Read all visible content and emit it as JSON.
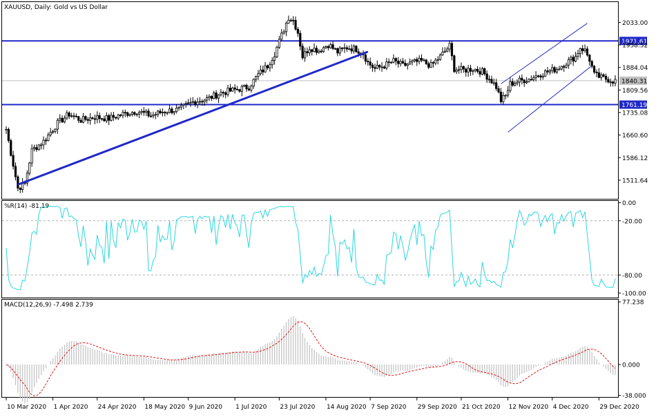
{
  "window": {
    "symbol_title": "XAUUSD, Daily:  Gold vs US Dollar"
  },
  "colors": {
    "background": "#ffffff",
    "frame": "#000000",
    "candle": "#000000",
    "trendline": "#1f28c8",
    "channel": "#2a33c0",
    "level_line": "#1f28c8",
    "level_label_bg": "#1f28c8",
    "level_label_text": "#ffffff",
    "bid_line": "#c0c0c0",
    "bid_label_bg": "#c0c0c0",
    "wpr_line": "#2ad6e0",
    "macd_hist": "#c0c0c0",
    "macd_signal": "#e01010",
    "grid_dash": "#b0b0b0"
  },
  "chart_data": [
    {
      "type": "candlestick",
      "panel": "price",
      "title": "XAUUSD, Daily:  Gold vs US Dollar",
      "ylim": [
        1450,
        2100
      ],
      "y_ticks": [
        {
          "value": 2033.0,
          "label": "2033.00"
        },
        {
          "value": 1958.52,
          "label": "1958.52"
        },
        {
          "value": 1884.04,
          "label": "1884.04"
        },
        {
          "value": 1809.56,
          "label": "1809.56"
        },
        {
          "value": 1735.08,
          "label": "1735.08"
        },
        {
          "value": 1660.6,
          "label": "1660.60"
        },
        {
          "value": 1586.12,
          "label": "1586.12"
        },
        {
          "value": 1511.64,
          "label": "1511.64"
        }
      ],
      "levels": [
        {
          "value": 1971.61,
          "label": "1971.61"
        },
        {
          "value": 1761.19,
          "label": "1761.19"
        }
      ],
      "current_price": {
        "value": 1840.31,
        "label": "1840.31"
      },
      "x_labels": [
        "10 Mar 2020",
        "1 Apr 2020",
        "24 Apr 2020",
        "18 May 2020",
        "9 Jun 2020",
        "1 Jul 2020",
        "23 Jul 2020",
        "14 Aug 2020",
        "7 Sep 2020",
        "29 Sep 2020",
        "21 Oct 2020",
        "12 Nov 2020",
        "4 Dec 2020",
        "29 Dec 2020"
      ],
      "close_path": [
        [
          0,
          1680
        ],
        [
          5,
          1485
        ],
        [
          8,
          1500
        ],
        [
          11,
          1610
        ],
        [
          16,
          1640
        ],
        [
          22,
          1700
        ],
        [
          27,
          1730
        ],
        [
          32,
          1710
        ],
        [
          38,
          1720
        ],
        [
          44,
          1715
        ],
        [
          50,
          1730
        ],
        [
          56,
          1740
        ],
        [
          62,
          1725
        ],
        [
          68,
          1740
        ],
        [
          74,
          1745
        ],
        [
          80,
          1770
        ],
        [
          86,
          1780
        ],
        [
          92,
          1800
        ],
        [
          98,
          1810
        ],
        [
          104,
          1820
        ],
        [
          108,
          1860
        ],
        [
          112,
          1890
        ],
        [
          115,
          1930
        ],
        [
          118,
          1990
        ],
        [
          121,
          2050
        ],
        [
          123,
          2040
        ],
        [
          125,
          2000
        ],
        [
          127,
          1920
        ],
        [
          130,
          1950
        ],
        [
          134,
          1940
        ],
        [
          138,
          1960
        ],
        [
          142,
          1935
        ],
        [
          146,
          1950
        ],
        [
          150,
          1945
        ],
        [
          153,
          1930
        ],
        [
          155,
          1900
        ],
        [
          158,
          1880
        ],
        [
          162,
          1890
        ],
        [
          166,
          1905
        ],
        [
          170,
          1890
        ],
        [
          174,
          1900
        ],
        [
          178,
          1905
        ],
        [
          182,
          1890
        ],
        [
          186,
          1920
        ],
        [
          190,
          1955
        ],
        [
          192,
          1880
        ],
        [
          196,
          1875
        ],
        [
          200,
          1880
        ],
        [
          204,
          1870
        ],
        [
          208,
          1840
        ],
        [
          210,
          1820
        ],
        [
          212,
          1775
        ],
        [
          214,
          1790
        ],
        [
          216,
          1830
        ],
        [
          220,
          1840
        ],
        [
          224,
          1845
        ],
        [
          228,
          1860
        ],
        [
          232,
          1870
        ],
        [
          236,
          1880
        ],
        [
          240,
          1900
        ],
        [
          244,
          1920
        ],
        [
          246,
          1950
        ],
        [
          248,
          1940
        ],
        [
          250,
          1910
        ],
        [
          252,
          1860
        ],
        [
          255,
          1850
        ],
        [
          258,
          1845
        ],
        [
          260,
          1840
        ]
      ],
      "trendlines": [
        {
          "name": "support",
          "from": [
            5,
            1497
          ],
          "to": [
            155,
            1936
          ]
        }
      ],
      "channel": {
        "upper": {
          "from": [
            212,
            1830
          ],
          "to": [
            249,
            2030
          ]
        },
        "lower": {
          "from": [
            215,
            1670
          ],
          "to": [
            251,
            1890
          ]
        }
      }
    },
    {
      "type": "line",
      "panel": "williams_r",
      "label": "%R(14) -81.19",
      "ylim": [
        -105,
        2
      ],
      "y_ticks": [
        {
          "value": 0,
          "label": "0.00"
        },
        {
          "value": -20,
          "label": "-20.00"
        },
        {
          "value": -80,
          "label": "-80.00"
        },
        {
          "value": -100,
          "label": "-100.00"
        }
      ],
      "levels": [
        -20,
        -80
      ]
    },
    {
      "type": "bar+line",
      "panel": "macd",
      "label": "MACD(12,26,9) -7.498 2.739",
      "ylim": [
        -40,
        80
      ],
      "y_ticks": [
        {
          "value": 77.238,
          "label": "77.238"
        },
        {
          "value": 0.0,
          "label": "0.000"
        },
        {
          "value": -38.0,
          "label": "-38.000"
        }
      ]
    }
  ]
}
